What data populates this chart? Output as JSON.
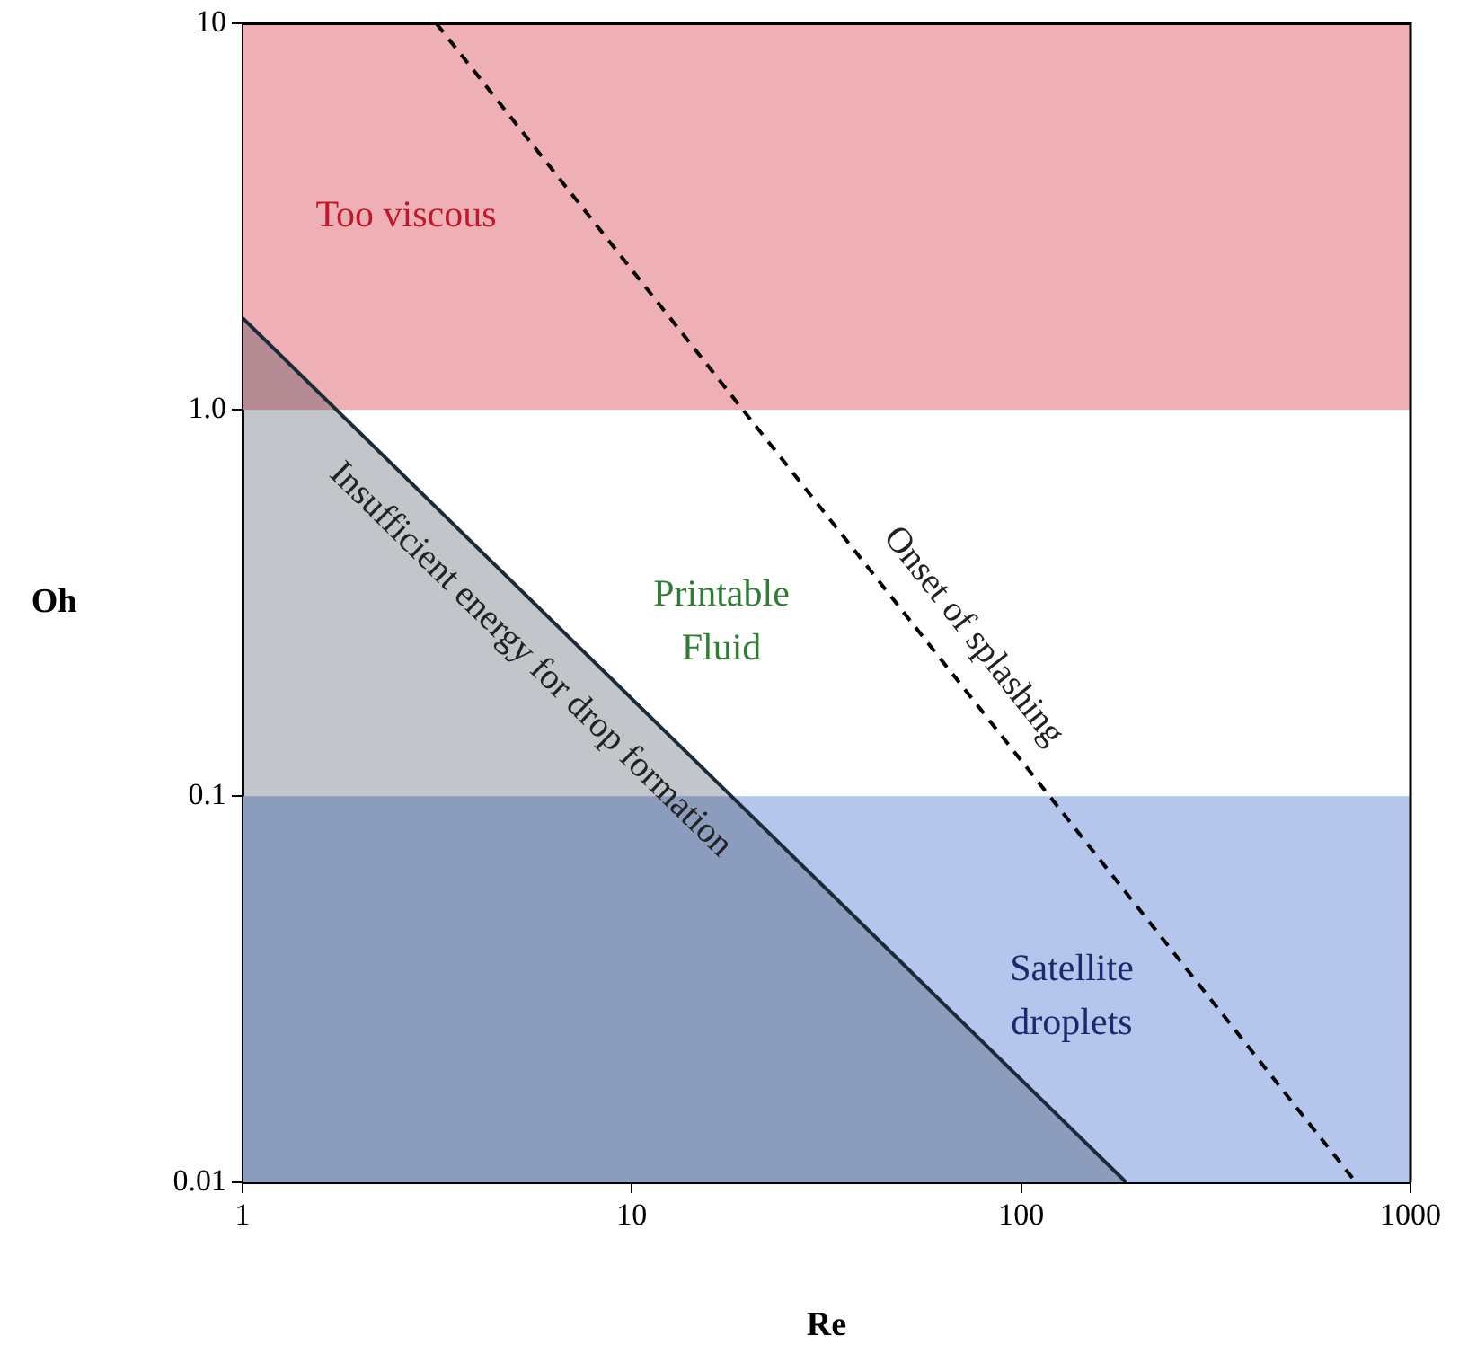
{
  "chart_data": {
    "type": "line",
    "xlabel": "Re",
    "ylabel": "Oh",
    "log": "xy",
    "xlim": [
      1,
      1000
    ],
    "xticks": [
      1,
      10,
      100,
      1000
    ],
    "ylim": [
      0.01,
      10
    ],
    "yticks": [
      0.01,
      0.1,
      {
        "value": 1,
        "label": "1.0"
      },
      10
    ],
    "grid": false,
    "legend": false,
    "series": [
      {
        "type": "area",
        "name": "Insufficient energy for drop formation",
        "color": "#1b2a38",
        "x": [
          1,
          186
        ],
        "values": [
          1.73,
          0.01
        ]
      },
      {
        "name": "Onset of splashing",
        "color": "#000000",
        "line_style": "dashed",
        "x": [
          3.15,
          724
        ],
        "values": [
          10,
          0.01
        ]
      }
    ],
    "bands": [
      {
        "axis": "y",
        "from": 1,
        "to": 10,
        "color": "#eeb0b4",
        "label": "Too viscous"
      },
      {
        "axis": "y",
        "from": 0.01,
        "to": 0.1,
        "color": "#b4c6ec",
        "label": "Satellite\ndroplets"
      }
    ],
    "annotations": [
      "Printable\nFluid"
    ]
  }
}
